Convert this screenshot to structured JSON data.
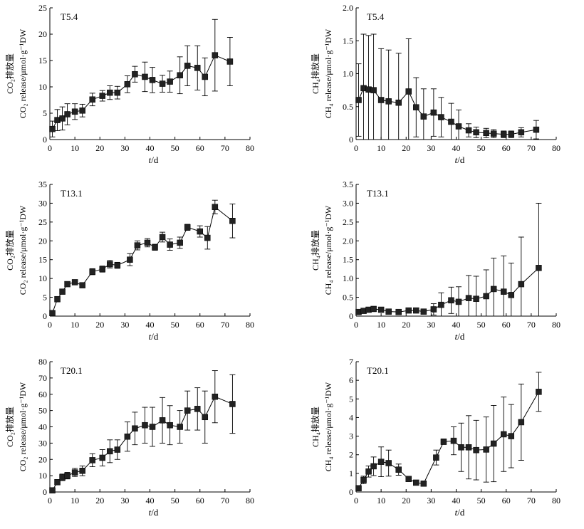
{
  "figure": {
    "xlabel_t": "t",
    "xlabel_d": "/d"
  },
  "chart_data": [
    {
      "id": "co2_t54",
      "type": "scatter",
      "title": "T5.4",
      "ylabel_cn": "CO₂排放量",
      "ylabel_en": "CO₂ release/μmol·g⁻¹DW",
      "xlim": [
        0,
        80
      ],
      "ylim": [
        0,
        25
      ],
      "xticks": [
        0,
        10,
        20,
        30,
        40,
        50,
        60,
        70,
        80
      ],
      "yticks": [
        0,
        5,
        10,
        15,
        20,
        25
      ],
      "x": [
        1,
        3,
        5,
        7,
        10,
        13,
        17,
        21,
        24,
        27,
        31,
        34,
        38,
        41,
        45,
        48,
        52,
        55,
        59,
        62,
        66,
        72
      ],
      "y": [
        2,
        3.7,
        4,
        4.8,
        5.3,
        5.5,
        7.6,
        8.3,
        8.9,
        8.9,
        10.5,
        12.4,
        11.9,
        11.3,
        10.6,
        11,
        12.2,
        14,
        13.6,
        11.9,
        16,
        14.8
      ],
      "err": [
        1.5,
        2,
        2.2,
        2,
        1.5,
        1.2,
        1.2,
        1,
        1.3,
        1.2,
        1.6,
        1.5,
        2.8,
        2.4,
        1.6,
        2,
        3.5,
        3.8,
        4.2,
        3.6,
        6.8,
        4.6
      ]
    },
    {
      "id": "ch4_t54",
      "type": "scatter",
      "title": "T5.4",
      "ylabel_cn": "CH₄排放量",
      "ylabel_en": "CH₄ release/μmol·g⁻¹DW",
      "xlim": [
        0,
        80
      ],
      "ylim": [
        0,
        2.0
      ],
      "xticks": [
        0,
        10,
        20,
        30,
        40,
        50,
        60,
        70,
        80
      ],
      "yticks": [
        "0",
        "0.5",
        "1.0",
        "1.5",
        "2.0"
      ],
      "ytick_values": [
        0,
        0.5,
        1.0,
        1.5,
        2.0
      ],
      "x": [
        1,
        3,
        5,
        7,
        10,
        13,
        17,
        21,
        24,
        27,
        31,
        34,
        38,
        41,
        45,
        48,
        52,
        55,
        59,
        62,
        66,
        72
      ],
      "y": [
        0.6,
        0.78,
        0.76,
        0.75,
        0.6,
        0.58,
        0.56,
        0.73,
        0.49,
        0.35,
        0.41,
        0.34,
        0.27,
        0.2,
        0.14,
        0.11,
        0.1,
        0.09,
        0.08,
        0.08,
        0.11,
        0.15
      ],
      "err": [
        0.55,
        0.82,
        0.82,
        0.85,
        0.78,
        0.78,
        0.75,
        0.8,
        0.45,
        0.42,
        0.36,
        0.3,
        0.28,
        0.25,
        0.1,
        0.08,
        0.07,
        0.06,
        0.05,
        0.05,
        0.07,
        0.14
      ]
    },
    {
      "id": "co2_t131",
      "type": "scatter",
      "title": "T13.1",
      "ylabel_cn": "CO₂排放量",
      "ylabel_en": "CO₂ release/μmol·g⁻¹DW",
      "xlim": [
        0,
        80
      ],
      "ylim": [
        0,
        35
      ],
      "xticks": [
        0,
        10,
        20,
        30,
        40,
        50,
        60,
        70,
        80
      ],
      "yticks": [
        0,
        5,
        10,
        15,
        20,
        25,
        30,
        35
      ],
      "x": [
        1,
        3,
        5,
        7,
        10,
        13,
        17,
        21,
        24,
        27,
        32,
        35,
        39,
        42,
        45,
        48,
        52,
        55,
        60,
        63,
        66,
        73
      ],
      "y": [
        0.8,
        4.5,
        6.5,
        8.5,
        9,
        8.2,
        11.8,
        12.5,
        13.8,
        13.5,
        15,
        18.8,
        19.5,
        18.3,
        21,
        19,
        19.5,
        23.6,
        22.5,
        20.8,
        29,
        25.3
      ],
      "err": [
        0.3,
        0.5,
        0.5,
        0.6,
        0.6,
        0.6,
        0.8,
        0.8,
        1,
        0.8,
        1.6,
        1.2,
        1.1,
        0.8,
        1.3,
        1.5,
        1.5,
        0.8,
        1.5,
        3,
        1.8,
        4.5
      ]
    },
    {
      "id": "ch4_t131",
      "type": "scatter",
      "title": "T13.1",
      "ylabel_cn": "CH₄排放量",
      "ylabel_en": "CH₄ release/μmol·g⁻¹DW",
      "xlim": [
        0,
        80
      ],
      "ylim": [
        0,
        3.5
      ],
      "xticks": [
        0,
        10,
        20,
        30,
        40,
        50,
        60,
        70,
        80
      ],
      "yticks": [
        "0",
        "0.5",
        "1.0",
        "1.5",
        "2.0",
        "2.5",
        "3.0",
        "3.5"
      ],
      "ytick_values": [
        0,
        0.5,
        1.0,
        1.5,
        2.0,
        2.5,
        3.0,
        3.5
      ],
      "x": [
        1,
        3,
        5,
        7,
        10,
        13,
        17,
        21,
        24,
        27,
        31,
        34,
        38,
        41,
        45,
        48,
        52,
        55,
        59,
        62,
        66,
        73
      ],
      "y": [
        0.11,
        0.14,
        0.17,
        0.19,
        0.17,
        0.12,
        0.11,
        0.15,
        0.15,
        0.12,
        0.18,
        0.3,
        0.42,
        0.38,
        0.48,
        0.46,
        0.53,
        0.72,
        0.65,
        0.56,
        0.85,
        1.28
      ],
      "err": [
        0.05,
        0.05,
        0.06,
        0.06,
        0.05,
        0.04,
        0.04,
        0.06,
        0.05,
        0.05,
        0.15,
        0.32,
        0.35,
        0.4,
        0.6,
        0.6,
        0.7,
        0.82,
        0.95,
        0.85,
        1.25,
        1.72
      ]
    },
    {
      "id": "co2_t201",
      "type": "scatter",
      "title": "T20.1",
      "ylabel_cn": "CO₂排放量",
      "ylabel_en": "CO₂ release/μmol·g⁻¹DW",
      "xlim": [
        0,
        80
      ],
      "ylim": [
        0,
        80
      ],
      "xticks": [
        0,
        10,
        20,
        30,
        40,
        50,
        60,
        70,
        80
      ],
      "yticks": [
        0,
        10,
        20,
        30,
        40,
        50,
        60,
        70,
        80
      ],
      "x": [
        1,
        3,
        5,
        7,
        10,
        13,
        17,
        21,
        24,
        27,
        31,
        34,
        38,
        41,
        45,
        48,
        52,
        55,
        59,
        62,
        66,
        73
      ],
      "y": [
        1,
        6,
        9,
        10,
        12,
        13,
        19.5,
        21,
        25,
        26,
        34,
        39,
        41,
        40,
        44,
        41,
        40,
        50,
        51,
        46,
        58.5,
        54
      ],
      "err": [
        0.5,
        1.5,
        2,
        2,
        2.5,
        3,
        4,
        5,
        7,
        6,
        9,
        10,
        11,
        12,
        14,
        12,
        10,
        12,
        13,
        16,
        16,
        18
      ]
    },
    {
      "id": "ch4_t201",
      "type": "scatter",
      "title": "T20.1",
      "ylabel_cn": "CH₄排放量",
      "ylabel_en": "CH₄ release/μmol·g⁻¹DW",
      "xlim": [
        0,
        80
      ],
      "ylim": [
        0,
        7
      ],
      "xticks": [
        0,
        10,
        20,
        30,
        40,
        50,
        60,
        70,
        80
      ],
      "yticks": [
        0,
        1,
        2,
        3,
        4,
        5,
        6,
        7
      ],
      "x": [
        1,
        3,
        5,
        7,
        10,
        13,
        17,
        21,
        24,
        27,
        32,
        35,
        39,
        42,
        45,
        48,
        52,
        55,
        59,
        62,
        66,
        73
      ],
      "y": [
        0.2,
        0.65,
        1.1,
        1.38,
        1.62,
        1.55,
        1.2,
        0.7,
        0.5,
        0.45,
        1.85,
        2.7,
        2.75,
        2.4,
        2.4,
        2.25,
        2.28,
        2.6,
        3.1,
        3.0,
        3.75,
        5.38
      ],
      "err": [
        0.1,
        0.2,
        0.3,
        0.5,
        0.8,
        0.7,
        0.3,
        0.1,
        0.1,
        0.1,
        0.4,
        0.15,
        0.75,
        1.3,
        1.7,
        1.6,
        1.75,
        2.05,
        2.0,
        1.7,
        2.05,
        1.05
      ]
    }
  ]
}
